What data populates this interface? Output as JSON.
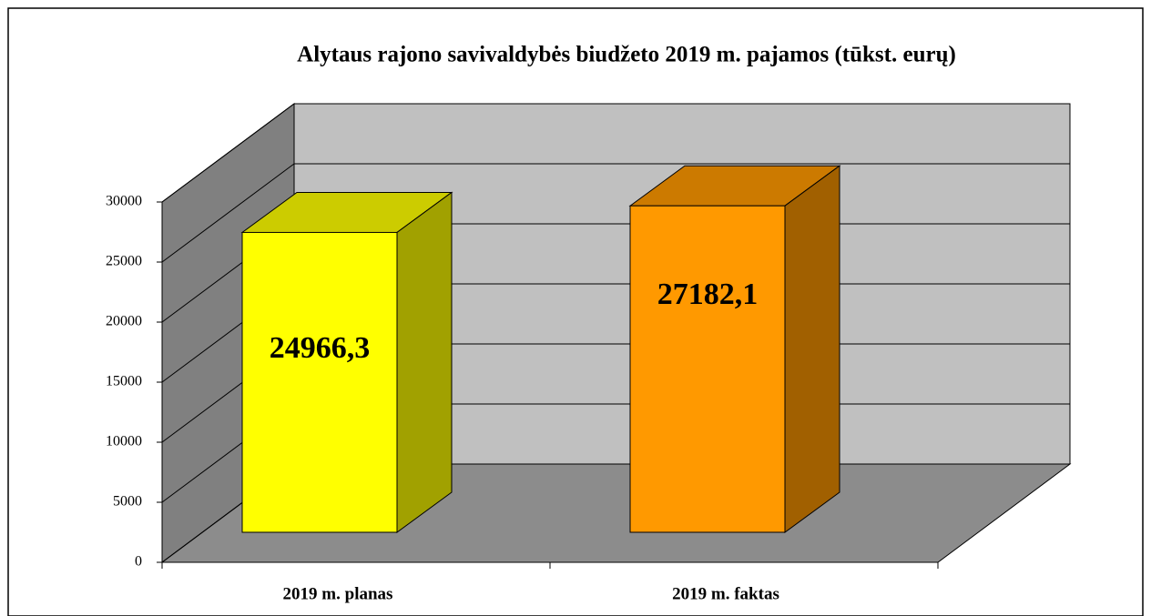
{
  "chart_data": {
    "type": "bar3d",
    "title": "Alytaus rajono savivaldybės biudžeto 2019 m. pajamos (tūkst. eurų)",
    "categories": [
      "2019 m. planas",
      "2019 m. faktas"
    ],
    "values": [
      24966.3,
      27182.1
    ],
    "value_labels": [
      "24966,3",
      "27182,1"
    ],
    "colors": [
      "#ffff00",
      "#ff9900"
    ],
    "ylim": [
      0,
      30000
    ],
    "yticks": [
      0,
      5000,
      10000,
      15000,
      20000,
      25000,
      30000
    ],
    "grid": true
  }
}
